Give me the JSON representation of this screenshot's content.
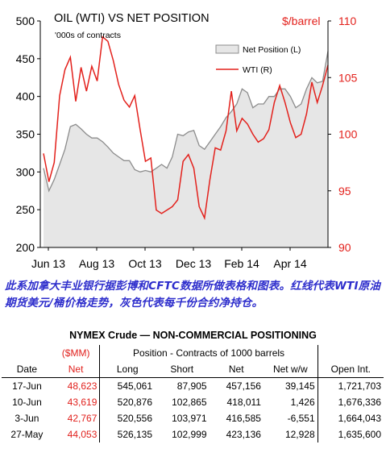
{
  "chart_data": {
    "type": "line",
    "title": "OIL (WTI) VS NET POSITION",
    "subtitle": "'000s of contracts",
    "right_axis_label": "$/barrel",
    "x_tick_labels": [
      "Jun 13",
      "Aug 13",
      "Oct 13",
      "Dec 13",
      "Feb 14",
      "Apr 14"
    ],
    "left_axis": {
      "min": 200,
      "max": 500,
      "ticks": [
        200,
        250,
        300,
        350,
        400,
        450,
        500
      ]
    },
    "right_axis": {
      "min": 90,
      "max": 110,
      "ticks": [
        90,
        95,
        100,
        105,
        110
      ]
    },
    "legend_position": "top-right",
    "grid": false,
    "colors": {
      "net_fill": "#e6e6e6",
      "net_line": "#8c8c8c",
      "wti_line": "#e3211c",
      "right_axis": "#e3211c"
    },
    "series": [
      {
        "name": "Net Position (L)",
        "axis": "left",
        "style": "area",
        "values": [
          305,
          275,
          290,
          310,
          330,
          360,
          363,
          357,
          350,
          345,
          345,
          340,
          333,
          325,
          320,
          315,
          315,
          303,
          300,
          302,
          300,
          305,
          310,
          305,
          320,
          350,
          348,
          353,
          355,
          335,
          330,
          340,
          350,
          360,
          372,
          380,
          390,
          410,
          405,
          385,
          390,
          390,
          400,
          400,
          410,
          410,
          400,
          385,
          390,
          410,
          425,
          418,
          420,
          460
        ]
      },
      {
        "name": "WTI (R)",
        "axis": "right",
        "style": "line",
        "values": [
          98.3,
          95.8,
          97.5,
          103.4,
          105.7,
          106.8,
          102.9,
          105.9,
          103.8,
          106.0,
          104.7,
          108.6,
          108.2,
          106.5,
          104.4,
          103.0,
          102.4,
          103.4,
          100.4,
          97.6,
          97.9,
          93.3,
          93.0,
          93.3,
          93.6,
          94.2,
          97.6,
          98.2,
          97.0,
          93.6,
          92.6,
          96.0,
          98.8,
          98.6,
          100.3,
          103.8,
          100.3,
          101.4,
          100.9,
          100.0,
          99.3,
          99.6,
          100.4,
          102.8,
          104.3,
          102.8,
          101.0,
          99.7,
          100.0,
          101.8,
          104.6,
          102.8,
          104.3,
          106.1
        ]
      }
    ]
  },
  "caption": "此系加拿大丰业银行据彭博和CFTC数据所做表格和图表。红线代表WTI原油期货美元/桶价格走势，灰色代表每千份合约净持仓。",
  "table": {
    "title": "NYMEX Crude — NON-COMMERCIAL POSITIONING",
    "group_headers": {
      "money": "($MM)",
      "position": "Position - Contracts of 1000 barrels"
    },
    "columns": [
      "Date",
      "Net",
      "Long",
      "Short",
      "Net",
      "Net w/w",
      "Open Int."
    ],
    "rows": [
      {
        "date": "17-Jun",
        "net_mm": "48,623",
        "long": "545,061",
        "short": "87,905",
        "net": "457,156",
        "net_ww": "39,145",
        "open_int": "1,721,703"
      },
      {
        "date": "10-Jun",
        "net_mm": "43,619",
        "long": "520,876",
        "short": "102,865",
        "net": "418,011",
        "net_ww": "1,426",
        "open_int": "1,676,336"
      },
      {
        "date": "3-Jun",
        "net_mm": "42,767",
        "long": "520,556",
        "short": "103,971",
        "net": "416,585",
        "net_ww": "-6,551",
        "open_int": "1,664,043"
      },
      {
        "date": "27-May",
        "net_mm": "44,053",
        "long": "526,135",
        "short": "102,999",
        "net": "423,136",
        "net_ww": "12,928",
        "open_int": "1,635,600"
      }
    ]
  }
}
